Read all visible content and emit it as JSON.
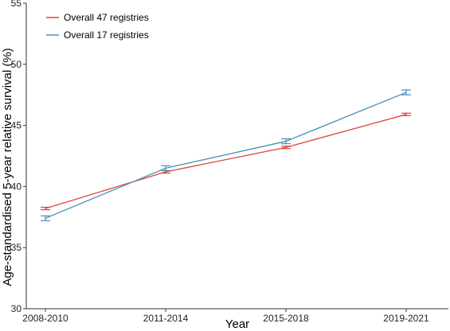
{
  "chart_data": {
    "type": "line",
    "title": "",
    "xlabel": "Year",
    "ylabel": "Age-standardised 5-year relative survival (%)",
    "categories": [
      "2008-2010",
      "2011-2014",
      "2015-2018",
      "2019-2021"
    ],
    "ylim": [
      30,
      55
    ],
    "yticks": [
      "30",
      "35",
      "40",
      "45",
      "50",
      "55"
    ],
    "grid": false,
    "legend_position": "top-left",
    "series": [
      {
        "name": "Overall 47 registries",
        "color": "#e0413a",
        "values": [
          38.2,
          41.2,
          43.2,
          45.9
        ],
        "ci_low": [
          38.1,
          41.1,
          43.1,
          45.8
        ],
        "ci_high": [
          38.3,
          41.3,
          43.3,
          46.0
        ]
      },
      {
        "name": "Overall 17 registries",
        "color": "#4a90b8",
        "values": [
          37.4,
          41.5,
          43.7,
          47.7
        ],
        "ci_low": [
          37.2,
          41.3,
          43.5,
          47.5
        ],
        "ci_high": [
          37.6,
          41.7,
          43.9,
          47.9
        ]
      }
    ]
  }
}
